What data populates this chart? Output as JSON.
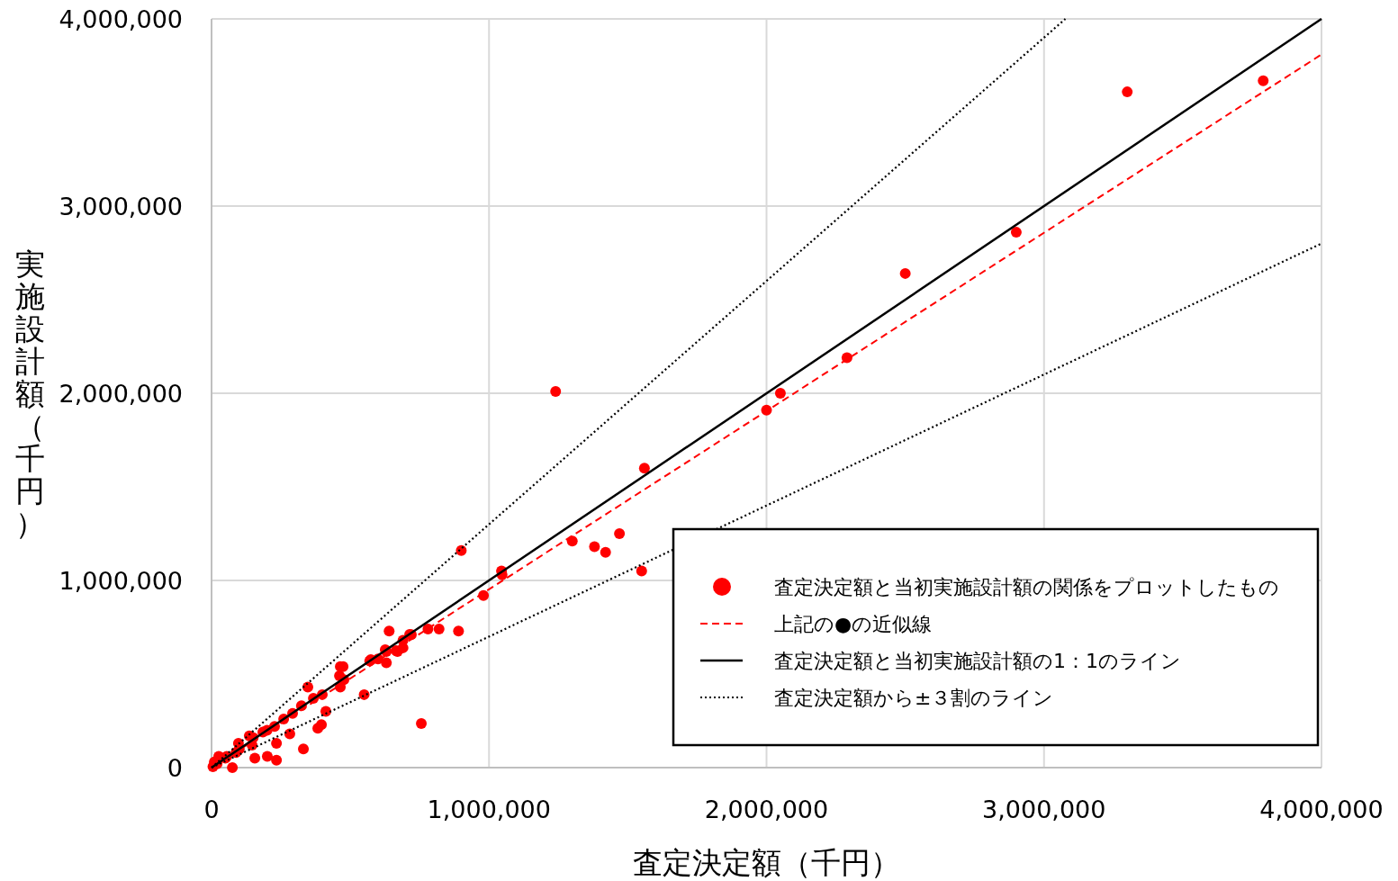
{
  "chart_data": {
    "type": "scatter",
    "xlabel": "査定決定額（千円）",
    "ylabel": "実施設計額（千円）",
    "xlim": [
      0,
      4000000
    ],
    "ylim": [
      0,
      4000000
    ],
    "xticks": [
      0,
      {
        "value": 1000000,
        "label": "1,000,000"
      },
      {
        "value": 2000000,
        "label": "2,000,000"
      },
      {
        "value": 3000000,
        "label": "3,000,000"
      },
      {
        "value": 4000000,
        "label": "4,000,000"
      }
    ],
    "yticks": [
      0,
      {
        "value": 1000000,
        "label": "1,000,000"
      },
      {
        "value": 2000000,
        "label": "2,000,000"
      },
      {
        "value": 3000000,
        "label": "3,000,000"
      },
      {
        "value": 4000000,
        "label": "4,000,000"
      }
    ],
    "grid": true,
    "legend": "bottom right",
    "series": [
      {
        "name": "査定決定額と当初実施設計額の関係をプロットしたもの",
        "type": "scatter",
        "marker": "circle",
        "color": "#ff0000",
        "x": [
          3790000,
          3300000,
          2900000,
          2500000,
          2290000,
          2050000,
          2000000,
          1240000,
          1560000,
          1300000,
          1380000,
          1420000,
          1470000,
          1550000,
          900000,
          1045000,
          1047000,
          980000,
          756000,
          780000,
          820000,
          890000,
          720000,
          640000,
          690000,
          690000,
          670000,
          630000,
          630000,
          600000,
          570000,
          550000,
          474000,
          477000,
          464000,
          461000,
          464000,
          347000,
          399000,
          367000,
          412000,
          324000,
          292000,
          396000,
          383000,
          260000,
          227000,
          282000,
          234000,
          185000,
          136000,
          146000,
          331000,
          156000,
          201000,
          234000,
          97000,
          88000,
          55000,
          26000,
          75000,
          10000,
          5000,
          20000,
          50000,
          100000,
          150000,
          200000,
          714000,
          626000,
          665000,
          574000
        ],
        "values": [
          3670000,
          3610000,
          2860000,
          2640000,
          2190000,
          2000000,
          1910000,
          2010000,
          1600000,
          1210000,
          1180000,
          1150000,
          1250000,
          1050000,
          1160000,
          1050000,
          1030000,
          920000,
          236000,
          740000,
          740000,
          730000,
          710000,
          730000,
          680000,
          640000,
          620000,
          620000,
          560000,
          580000,
          570000,
          390000,
          540000,
          470000,
          540000,
          490000,
          430000,
          430000,
          390000,
          370000,
          300000,
          330000,
          290000,
          230000,
          210000,
          260000,
          220000,
          180000,
          130000,
          190000,
          170000,
          120000,
          100000,
          50000,
          60000,
          40000,
          130000,
          80000,
          60000,
          60000,
          0,
          30000,
          5000,
          20000,
          50000,
          100000,
          160000,
          200000,
          712000,
          630000,
          625000,
          577000
        ]
      },
      {
        "name": "上記の●の近似線",
        "type": "line",
        "line_style": "dashed",
        "color": "#ff0000",
        "x": [
          0,
          4000000
        ],
        "values": [
          0,
          3810000
        ]
      },
      {
        "name": "査定決定額と当初実施設計額の1：1のライン",
        "type": "line",
        "line_style": "solid",
        "color": "#000000",
        "x": [
          0,
          4000000
        ],
        "values": [
          0,
          4000000
        ]
      },
      {
        "name": "査定決定額から±３割のライン",
        "type": "line",
        "line_style": "dotted",
        "color": "#000000",
        "x": [
          0,
          3077000
        ],
        "values": [
          0,
          4000000
        ]
      },
      {
        "type": "line",
        "line_style": "dotted",
        "color": "#000000",
        "x": [
          0,
          4000000
        ],
        "values": [
          0,
          2800000
        ]
      }
    ]
  }
}
